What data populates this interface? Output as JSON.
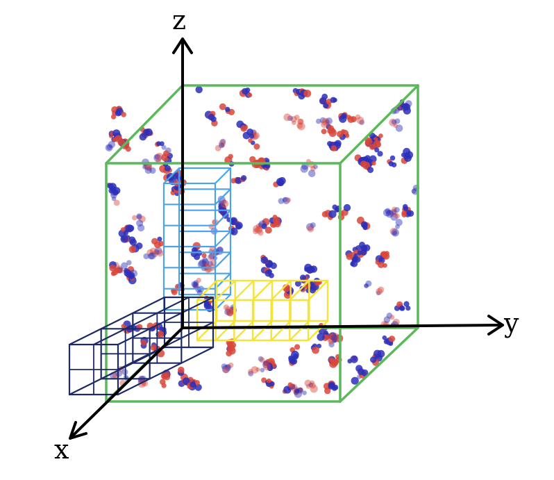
{
  "figure": {
    "description_type": "3D simulation box with axes and sampling sub-boxes",
    "axes": {
      "x_label": "x",
      "y_label": "y",
      "z_label": "z"
    },
    "colors": {
      "box": "#5cb85c",
      "axis": "#000000",
      "z_grid": "#4aa3ea",
      "y_grid": "#f5e33a",
      "x_grid": "#1d2a66",
      "particle_red": "#d9473b",
      "particle_blue": "#2d2fb8"
    },
    "grids": {
      "z_column_cells": 6,
      "y_row_cells": 6,
      "x_row_cells": 3
    }
  }
}
